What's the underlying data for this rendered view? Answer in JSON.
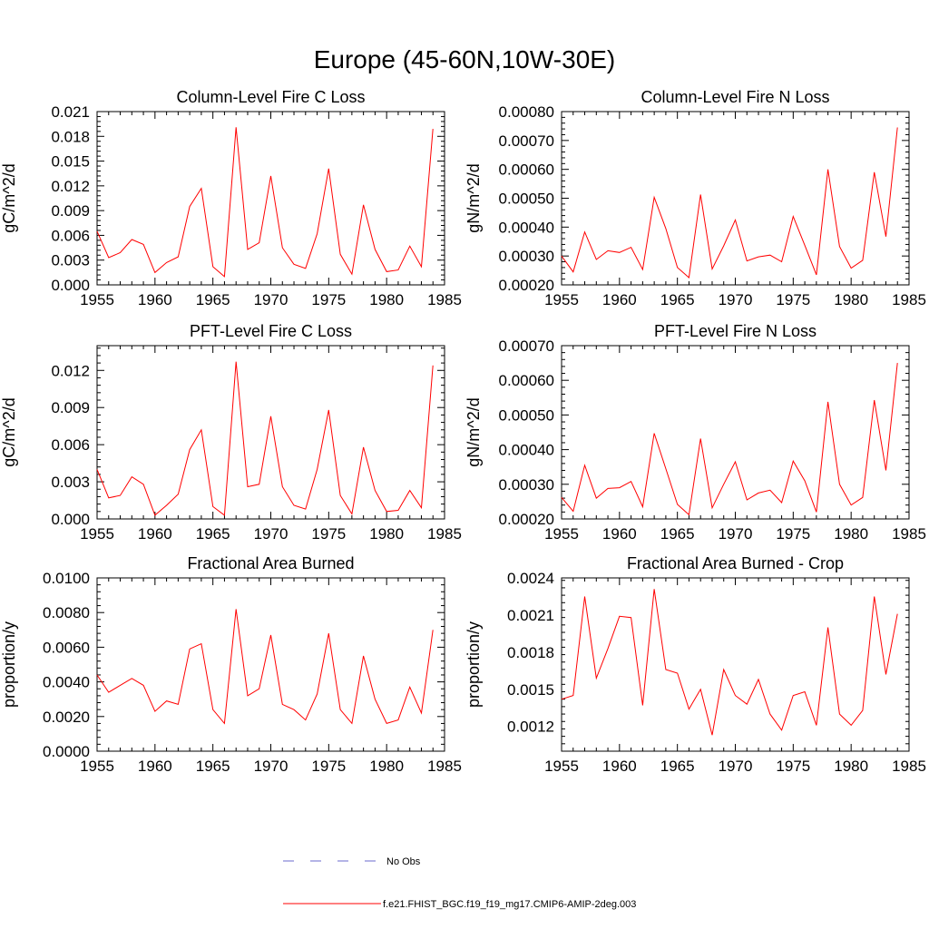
{
  "figure_title": "Europe (45-60N,10W-30E)",
  "legend": {
    "obs_label": "No Obs",
    "obs_color": "#6a6acd",
    "model_label": "f.e21.FHIST_BGC.f19_f19_mg17.CMIP6-AMIP-2deg.003",
    "model_color": "#ff0000"
  },
  "chart_data": [
    {
      "type": "line",
      "title": "Column-Level Fire C Loss",
      "ylabel": "gC/m^2/d",
      "xlim": [
        1955,
        1985
      ],
      "ylim": [
        0,
        0.021
      ],
      "xticks": [
        "1955",
        "1960",
        "1965",
        "1970",
        "1975",
        "1980",
        "1985"
      ],
      "yticks": [
        "0.000",
        "0.003",
        "0.006",
        "0.009",
        "0.012",
        "0.015",
        "0.018",
        "0.021"
      ],
      "ytick_values": [
        0,
        0.003,
        0.006,
        0.009,
        0.012,
        0.015,
        0.018,
        0.021
      ],
      "x": [
        1955,
        1956,
        1957,
        1958,
        1959,
        1960,
        1961,
        1962,
        1963,
        1964,
        1965,
        1966,
        1967,
        1968,
        1969,
        1970,
        1971,
        1972,
        1973,
        1974,
        1975,
        1976,
        1977,
        1978,
        1979,
        1980,
        1981,
        1982,
        1983,
        1984
      ],
      "series": [
        {
          "name": "f.e21.FHIST_BGC.f19_f19_mg17.CMIP6-AMIP-2deg.003",
          "values": [
            0.0065,
            0.0033,
            0.0039,
            0.0055,
            0.0049,
            0.0015,
            0.0027,
            0.0034,
            0.0095,
            0.0117,
            0.0022,
            0.001,
            0.0191,
            0.0043,
            0.0051,
            0.0132,
            0.0045,
            0.0025,
            0.002,
            0.0062,
            0.0141,
            0.0037,
            0.0013,
            0.0097,
            0.0043,
            0.0016,
            0.0018,
            0.0047,
            0.0022,
            0.0189
          ]
        }
      ]
    },
    {
      "type": "line",
      "title": "Column-Level Fire N Loss",
      "ylabel": "gN/m^2/d",
      "xlim": [
        1955,
        1985
      ],
      "ylim": [
        0.0002,
        0.0008
      ],
      "xticks": [
        "1955",
        "1960",
        "1965",
        "1970",
        "1975",
        "1980",
        "1985"
      ],
      "yticks": [
        "0.00020",
        "0.00030",
        "0.00040",
        "0.00050",
        "0.00060",
        "0.00070",
        "0.00080"
      ],
      "ytick_values": [
        0.0002,
        0.0003,
        0.0004,
        0.0005,
        0.0006,
        0.0007,
        0.0008
      ],
      "x": [
        1955,
        1956,
        1957,
        1958,
        1959,
        1960,
        1961,
        1962,
        1963,
        1964,
        1965,
        1966,
        1967,
        1968,
        1969,
        1970,
        1971,
        1972,
        1973,
        1974,
        1975,
        1976,
        1977,
        1978,
        1979,
        1980,
        1981,
        1982,
        1983,
        1984
      ],
      "series": [
        {
          "name": "f.e21.FHIST_BGC.f19_f19_mg17.CMIP6-AMIP-2deg.003",
          "values": [
            0.0003,
            0.000245,
            0.000383,
            0.000288,
            0.000318,
            0.000312,
            0.00033,
            0.000253,
            0.000503,
            0.000395,
            0.00026,
            0.000225,
            0.000513,
            0.000255,
            0.000335,
            0.000425,
            0.000283,
            0.000297,
            0.000303,
            0.00028,
            0.000437,
            0.000337,
            0.000235,
            0.0006,
            0.000333,
            0.000258,
            0.000285,
            0.00059,
            0.000367,
            0.000745
          ]
        }
      ]
    },
    {
      "type": "line",
      "title": "PFT-Level Fire C Loss",
      "ylabel": "gC/m^2/d",
      "xlim": [
        1955,
        1985
      ],
      "ylim": [
        0,
        0.014
      ],
      "xticks": [
        "1955",
        "1960",
        "1965",
        "1970",
        "1975",
        "1980",
        "1985"
      ],
      "yticks": [
        "0.000",
        "0.003",
        "0.006",
        "0.009",
        "0.012"
      ],
      "ytick_values": [
        0,
        0.003,
        0.006,
        0.009,
        0.012
      ],
      "x": [
        1955,
        1956,
        1957,
        1958,
        1959,
        1960,
        1961,
        1962,
        1963,
        1964,
        1965,
        1966,
        1967,
        1968,
        1969,
        1970,
        1971,
        1972,
        1973,
        1974,
        1975,
        1976,
        1977,
        1978,
        1979,
        1980,
        1981,
        1982,
        1983,
        1984
      ],
      "series": [
        {
          "name": "f.e21.FHIST_BGC.f19_f19_mg17.CMIP6-AMIP-2deg.003",
          "values": [
            0.004,
            0.0017,
            0.0019,
            0.0034,
            0.0028,
            0.0003,
            0.0011,
            0.002,
            0.0056,
            0.0072,
            0.001,
            0.0003,
            0.0127,
            0.0026,
            0.0028,
            0.0083,
            0.0026,
            0.0011,
            0.0008,
            0.004,
            0.0088,
            0.0019,
            0.0004,
            0.0058,
            0.0023,
            0.0006,
            0.0007,
            0.0023,
            0.0009,
            0.0124
          ]
        }
      ]
    },
    {
      "type": "line",
      "title": "PFT-Level Fire N Loss",
      "ylabel": "gN/m^2/d",
      "xlim": [
        1955,
        1985
      ],
      "ylim": [
        0.0002,
        0.0007
      ],
      "xticks": [
        "1955",
        "1960",
        "1965",
        "1970",
        "1975",
        "1980",
        "1985"
      ],
      "yticks": [
        "0.00020",
        "0.00030",
        "0.00040",
        "0.00050",
        "0.00060",
        "0.00070"
      ],
      "ytick_values": [
        0.0002,
        0.0003,
        0.0004,
        0.0005,
        0.0006,
        0.0007
      ],
      "x": [
        1955,
        1956,
        1957,
        1958,
        1959,
        1960,
        1961,
        1962,
        1963,
        1964,
        1965,
        1966,
        1967,
        1968,
        1969,
        1970,
        1971,
        1972,
        1973,
        1974,
        1975,
        1976,
        1977,
        1978,
        1979,
        1980,
        1981,
        1982,
        1983,
        1984
      ],
      "series": [
        {
          "name": "f.e21.FHIST_BGC.f19_f19_mg17.CMIP6-AMIP-2deg.003",
          "values": [
            0.000262,
            0.000222,
            0.000355,
            0.00026,
            0.000288,
            0.00029,
            0.000308,
            0.000235,
            0.000447,
            0.000345,
            0.000242,
            0.000212,
            0.000432,
            0.000232,
            0.0003,
            0.000365,
            0.000255,
            0.000275,
            0.000283,
            0.000247,
            0.000367,
            0.00031,
            0.00022,
            0.000538,
            0.0003,
            0.00024,
            0.000262,
            0.000543,
            0.00034,
            0.00065
          ]
        }
      ]
    },
    {
      "type": "line",
      "title": "Fractional Area Burned",
      "ylabel": "proportion/y",
      "xlim": [
        1955,
        1985
      ],
      "ylim": [
        0,
        0.01
      ],
      "xticks": [
        "1955",
        "1960",
        "1965",
        "1970",
        "1975",
        "1980",
        "1985"
      ],
      "yticks": [
        "0.0000",
        "0.0020",
        "0.0040",
        "0.0060",
        "0.0080",
        "0.0100"
      ],
      "ytick_values": [
        0,
        0.002,
        0.004,
        0.006,
        0.008,
        0.01
      ],
      "x": [
        1955,
        1956,
        1957,
        1958,
        1959,
        1960,
        1961,
        1962,
        1963,
        1964,
        1965,
        1966,
        1967,
        1968,
        1969,
        1970,
        1971,
        1972,
        1973,
        1974,
        1975,
        1976,
        1977,
        1978,
        1979,
        1980,
        1981,
        1982,
        1983,
        1984
      ],
      "series": [
        {
          "name": "f.e21.FHIST_BGC.f19_f19_mg17.CMIP6-AMIP-2deg.003",
          "values": [
            0.0044,
            0.0034,
            0.0038,
            0.0042,
            0.0038,
            0.0023,
            0.0029,
            0.0027,
            0.0059,
            0.0062,
            0.0024,
            0.0016,
            0.0082,
            0.0032,
            0.0036,
            0.0067,
            0.0027,
            0.0024,
            0.0018,
            0.0033,
            0.0068,
            0.0024,
            0.0016,
            0.0055,
            0.003,
            0.0016,
            0.0018,
            0.0037,
            0.0022,
            0.007
          ]
        }
      ]
    },
    {
      "type": "line",
      "title": "Fractional Area Burned - Crop",
      "ylabel": "proportion/y",
      "xlim": [
        1955,
        1985
      ],
      "ylim": [
        0.001,
        0.0024
      ],
      "xticks": [
        "1955",
        "1960",
        "1965",
        "1970",
        "1975",
        "1980",
        "1985"
      ],
      "yticks": [
        "0.0012",
        "0.0015",
        "0.0018",
        "0.0021",
        "0.0024"
      ],
      "ytick_values": [
        0.0012,
        0.0015,
        0.0018,
        0.0021,
        0.0024
      ],
      "x": [
        1955,
        1956,
        1957,
        1958,
        1959,
        1960,
        1961,
        1962,
        1963,
        1964,
        1965,
        1966,
        1967,
        1968,
        1969,
        1970,
        1971,
        1972,
        1973,
        1974,
        1975,
        1976,
        1977,
        1978,
        1979,
        1980,
        1981,
        1982,
        1983,
        1984
      ],
      "series": [
        {
          "name": "f.e21.FHIST_BGC.f19_f19_mg17.CMIP6-AMIP-2deg.003",
          "values": [
            0.00142,
            0.00145,
            0.00225,
            0.00159,
            0.00183,
            0.00209,
            0.00208,
            0.00137,
            0.00231,
            0.00166,
            0.00163,
            0.00134,
            0.0015,
            0.00113,
            0.00166,
            0.00145,
            0.00138,
            0.00158,
            0.0013,
            0.00117,
            0.00145,
            0.00148,
            0.00121,
            0.002,
            0.0013,
            0.00121,
            0.00133,
            0.00225,
            0.00162,
            0.00211
          ]
        }
      ]
    }
  ]
}
